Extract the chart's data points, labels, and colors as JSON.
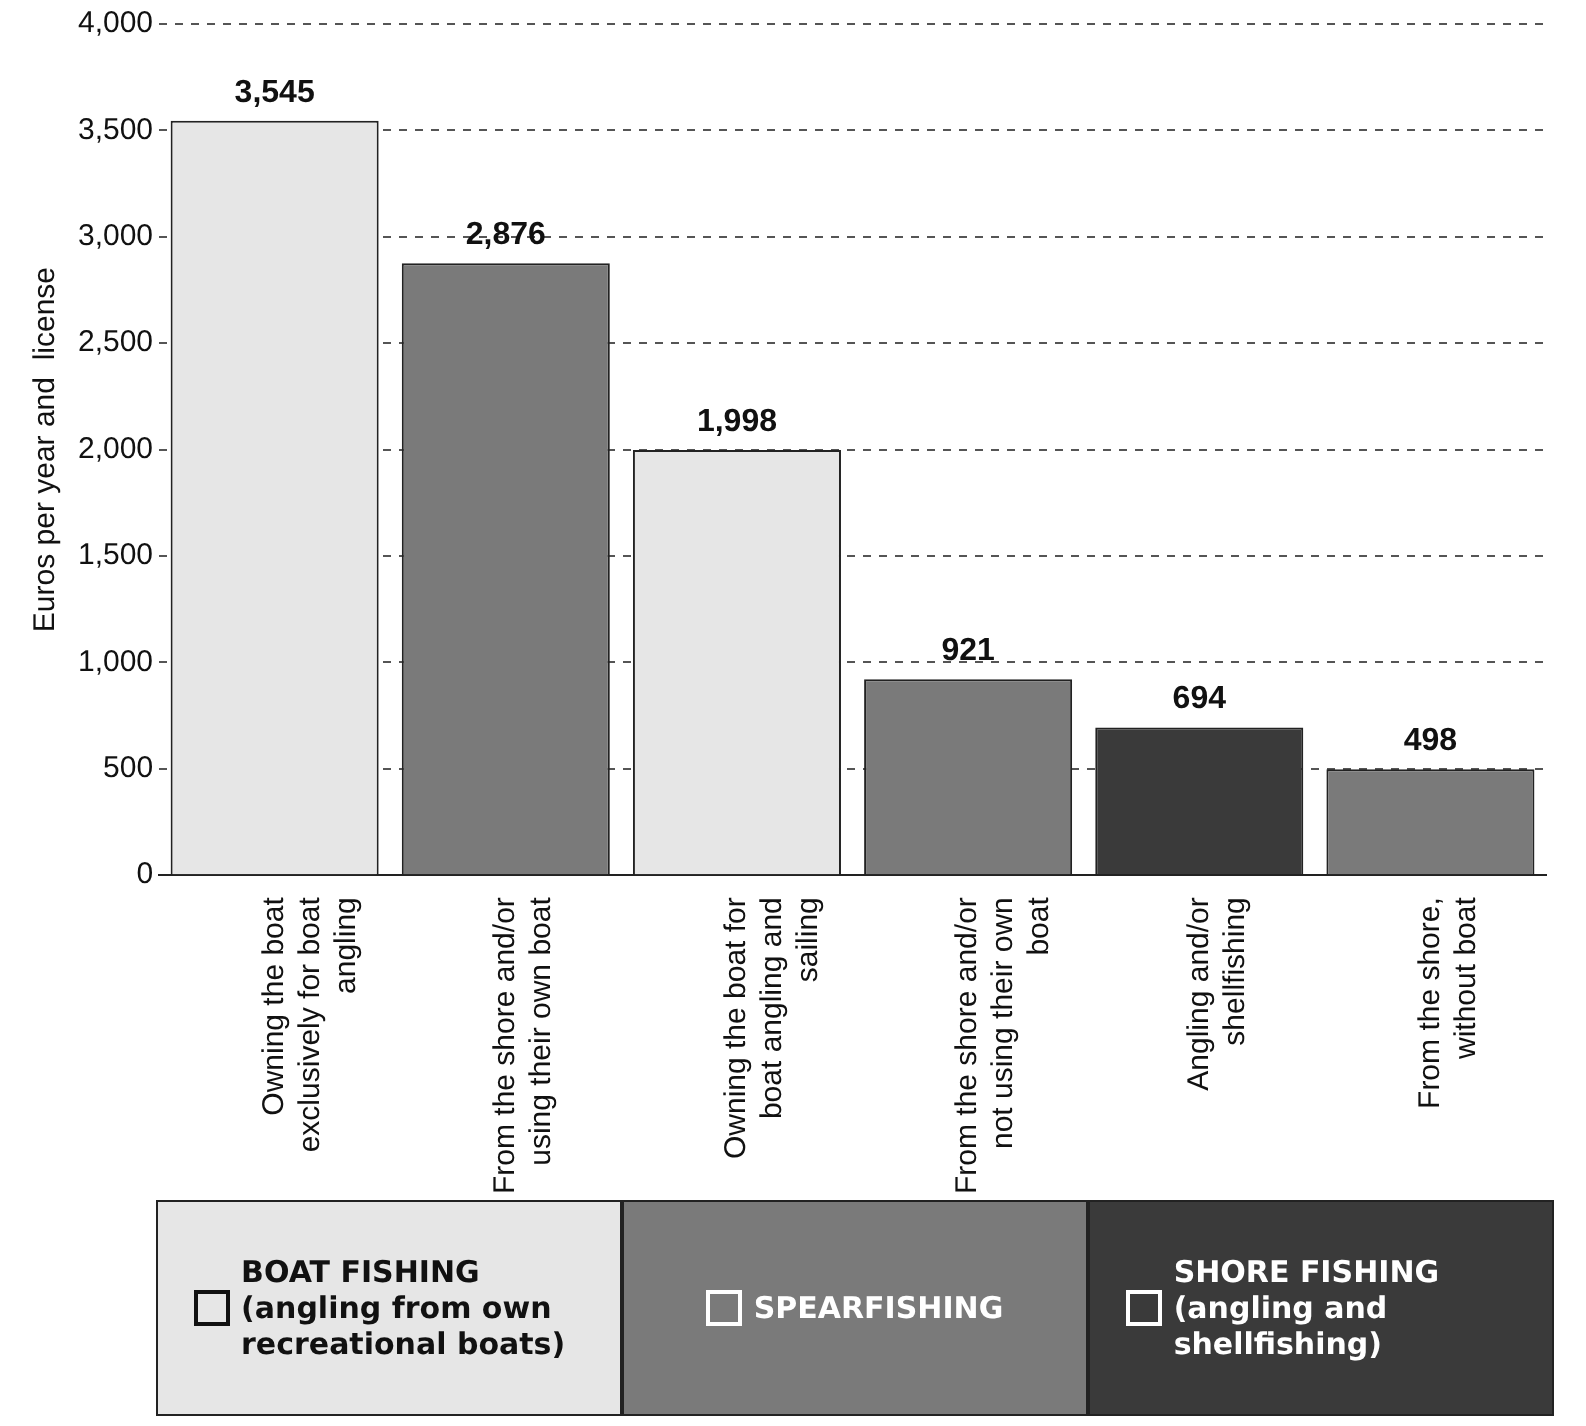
{
  "chart_data": {
    "type": "bar",
    "ylabel": "Euros per year and  license",
    "categories": [
      "Owning the boat exclusively for boat angling",
      "From the shore and/or using their own boat",
      "Owning the boat for boat angling and sailing",
      "From the shore and/or not using their own boat",
      "Angling and/or shellfishing",
      "From the shore, without boat"
    ],
    "series": [
      {
        "name": "BOAT FISHING (angling from own recreational boats)",
        "color": "#e6e6e6",
        "values": [
          3545,
          null,
          1998,
          null,
          null,
          null
        ],
        "value_labels": [
          "3,545",
          null,
          "1,998",
          null,
          null,
          null
        ]
      },
      {
        "name": "SPEARFISHING",
        "color": "#7a7a7a",
        "values": [
          null,
          2876,
          null,
          921,
          null,
          498
        ],
        "value_labels": [
          null,
          "2,876",
          null,
          "921",
          null,
          "498"
        ]
      },
      {
        "name": "SHORE FISHING (angling and shellfishing)",
        "color": "#3a3a3a",
        "values": [
          null,
          null,
          null,
          null,
          694,
          null
        ],
        "value_labels": [
          null,
          null,
          null,
          null,
          "694",
          null
        ]
      }
    ],
    "ylim": [
      0,
      4000
    ],
    "yticks": [
      {
        "value": 0,
        "label": "0"
      },
      {
        "value": 500,
        "label": "500"
      },
      {
        "value": 1000,
        "label": "1,000"
      },
      {
        "value": 1500,
        "label": "1,500"
      },
      {
        "value": 2000,
        "label": "2,000"
      },
      {
        "value": 2500,
        "label": "2,500"
      },
      {
        "value": 3000,
        "label": "3,000"
      },
      {
        "value": 3500,
        "label": "3,500"
      },
      {
        "value": 4000,
        "label": "4,000"
      }
    ],
    "grid": "y",
    "legend": "bottom"
  }
}
